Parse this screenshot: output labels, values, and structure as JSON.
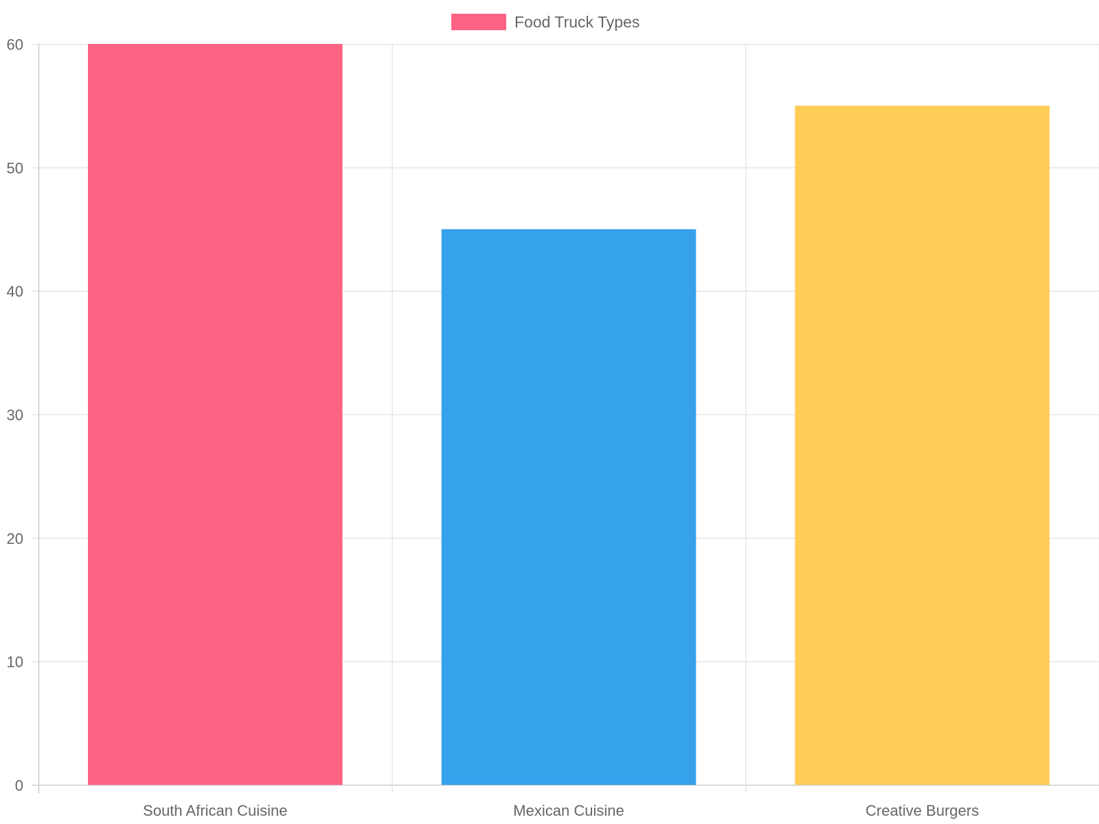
{
  "chart_data": {
    "type": "bar",
    "categories": [
      "South African Cuisine",
      "Mexican Cuisine",
      "Creative Burgers"
    ],
    "series": [
      {
        "name": "Food Truck Types",
        "values": [
          60,
          45,
          55
        ],
        "colors": [
          "#ff6384",
          "#36a2eb",
          "#ffcd56"
        ]
      }
    ],
    "ylim": [
      0,
      60
    ],
    "yticks": [
      "0",
      "10",
      "20",
      "30",
      "40",
      "50",
      "60"
    ],
    "grid": true,
    "legend": "top"
  },
  "colors": {
    "grid": "#e5e5e5",
    "axis": "#cccccc",
    "text": "#666666"
  }
}
